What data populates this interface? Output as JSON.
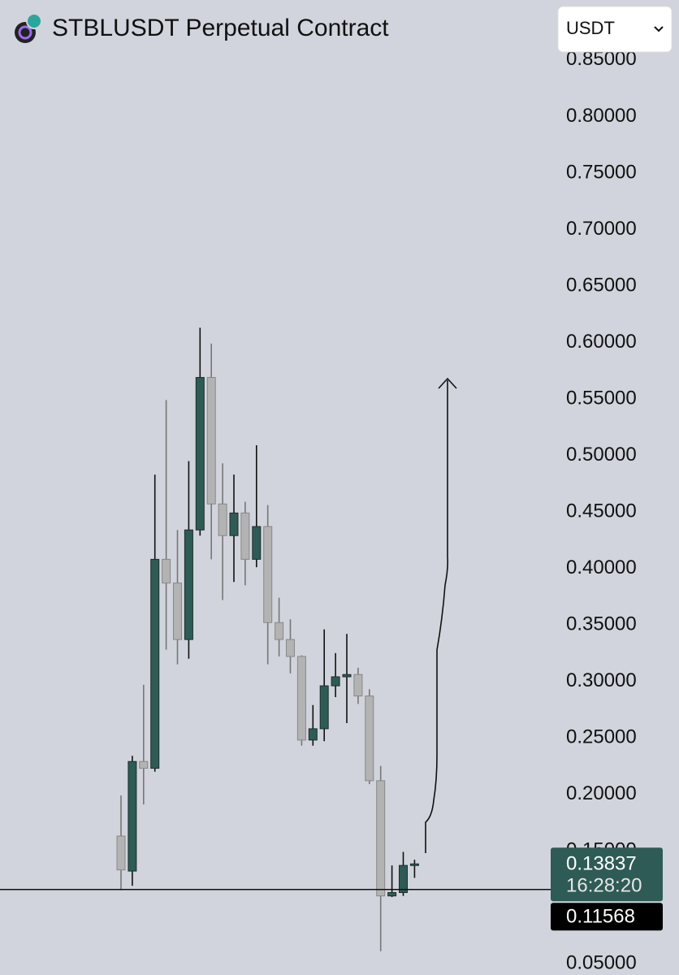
{
  "chart_data": {
    "type": "candlestick",
    "title": "STBLUSDT Perpetual Contract",
    "currency": "USDT",
    "open": [
      0.163,
      0.132,
      0.229,
      0.223,
      0.408,
      0.387,
      0.337,
      0.434,
      0.569,
      0.457,
      0.429,
      0.449,
      0.408,
      0.437,
      0.352,
      0.337,
      0.322,
      0.248,
      0.258,
      0.296,
      0.304,
      0.306,
      0.287,
      0.212,
      0.11,
      0.113,
      0.137
    ],
    "high": [
      0.199,
      0.234,
      0.297,
      0.483,
      0.549,
      0.434,
      0.495,
      0.613,
      0.599,
      0.493,
      0.483,
      0.459,
      0.509,
      0.456,
      0.374,
      0.355,
      0.323,
      0.279,
      0.346,
      0.325,
      0.342,
      0.312,
      0.293,
      0.225,
      0.137,
      0.149,
      0.142
    ],
    "low": [
      0.115,
      0.119,
      0.191,
      0.22,
      0.328,
      0.315,
      0.32,
      0.429,
      0.408,
      0.372,
      0.388,
      0.385,
      0.401,
      0.315,
      0.322,
      0.307,
      0.243,
      0.243,
      0.247,
      0.286,
      0.263,
      0.28,
      0.209,
      0.061,
      0.109,
      0.11,
      0.126
    ],
    "close": [
      0.133,
      0.229,
      0.223,
      0.408,
      0.387,
      0.337,
      0.434,
      0.569,
      0.457,
      0.429,
      0.449,
      0.408,
      0.437,
      0.352,
      0.337,
      0.322,
      0.248,
      0.258,
      0.296,
      0.304,
      0.306,
      0.287,
      0.212,
      0.11,
      0.113,
      0.137,
      0.13837
    ],
    "up_color": "#2e5b55",
    "down_color": "#b3b3b3",
    "ylim": [
      0.04,
      0.86
    ],
    "yticks": [
      {
        "value": 0.85,
        "label": "0.85000"
      },
      {
        "value": 0.8,
        "label": "0.80000"
      },
      {
        "value": 0.75,
        "label": "0.75000"
      },
      {
        "value": 0.7,
        "label": "0.70000"
      },
      {
        "value": 0.65,
        "label": "0.65000"
      },
      {
        "value": 0.6,
        "label": "0.60000"
      },
      {
        "value": 0.55,
        "label": "0.55000"
      },
      {
        "value": 0.5,
        "label": "0.50000"
      },
      {
        "value": 0.45,
        "label": "0.45000"
      },
      {
        "value": 0.4,
        "label": "0.40000"
      },
      {
        "value": 0.35,
        "label": "0.35000"
      },
      {
        "value": 0.3,
        "label": "0.30000"
      },
      {
        "value": 0.25,
        "label": "0.25000"
      },
      {
        "value": 0.2,
        "label": "0.20000"
      },
      {
        "value": 0.15,
        "label": "0.15000"
      },
      {
        "value": 0.05,
        "label": "0.05000"
      }
    ],
    "last_price": 0.13837,
    "countdown": "16:28:20",
    "marked_price": 0.11568
  }
}
